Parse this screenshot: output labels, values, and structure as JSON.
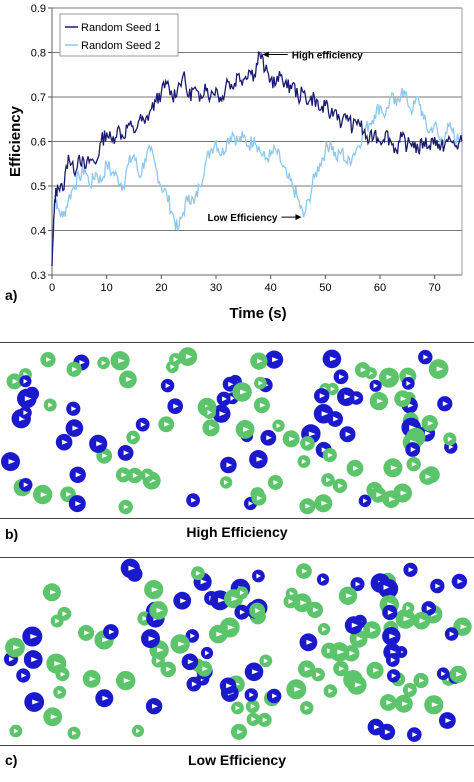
{
  "chart_data": {
    "type": "line",
    "xlabel": "Time (s)",
    "ylabel": "Efficiency",
    "xlim": [
      0,
      75
    ],
    "ylim": [
      0.3,
      0.9
    ],
    "x_ticks": [
      0,
      10,
      20,
      30,
      40,
      50,
      60,
      70
    ],
    "y_ticks": [
      0.3,
      0.4,
      0.5,
      0.6,
      0.7,
      0.8,
      0.9
    ],
    "grid": "horizontal",
    "legend": "top-left",
    "series": [
      {
        "name": "Random Seed 1",
        "color": "#1a1a6e",
        "points": [
          [
            0,
            0.32
          ],
          [
            0.5,
            0.47
          ],
          [
            1,
            0.5
          ],
          [
            2,
            0.49
          ],
          [
            3,
            0.57
          ],
          [
            4,
            0.53
          ],
          [
            5,
            0.57
          ],
          [
            6,
            0.54
          ],
          [
            7,
            0.56
          ],
          [
            8,
            0.55
          ],
          [
            9,
            0.6
          ],
          [
            10,
            0.62
          ],
          [
            11,
            0.6
          ],
          [
            12,
            0.63
          ],
          [
            13,
            0.61
          ],
          [
            14,
            0.64
          ],
          [
            15,
            0.62
          ],
          [
            16,
            0.65
          ],
          [
            17,
            0.64
          ],
          [
            18,
            0.67
          ],
          [
            19,
            0.69
          ],
          [
            20,
            0.71
          ],
          [
            21,
            0.73
          ],
          [
            22,
            0.7
          ],
          [
            23,
            0.72
          ],
          [
            24,
            0.75
          ],
          [
            25,
            0.7
          ],
          [
            26,
            0.72
          ],
          [
            27,
            0.69
          ],
          [
            28,
            0.73
          ],
          [
            29,
            0.7
          ],
          [
            30,
            0.72
          ],
          [
            31,
            0.69
          ],
          [
            32,
            0.74
          ],
          [
            33,
            0.72
          ],
          [
            34,
            0.75
          ],
          [
            35,
            0.74
          ],
          [
            36,
            0.76
          ],
          [
            37,
            0.75
          ],
          [
            38,
            0.8
          ],
          [
            39,
            0.76
          ],
          [
            40,
            0.74
          ],
          [
            41,
            0.73
          ],
          [
            42,
            0.75
          ],
          [
            43,
            0.72
          ],
          [
            44,
            0.73
          ],
          [
            45,
            0.7
          ],
          [
            46,
            0.71
          ],
          [
            47,
            0.69
          ],
          [
            48,
            0.7
          ],
          [
            49,
            0.67
          ],
          [
            50,
            0.68
          ],
          [
            51,
            0.66
          ],
          [
            52,
            0.67
          ],
          [
            53,
            0.64
          ],
          [
            54,
            0.66
          ],
          [
            55,
            0.63
          ],
          [
            56,
            0.65
          ],
          [
            57,
            0.62
          ],
          [
            58,
            0.6
          ],
          [
            59,
            0.62
          ],
          [
            60,
            0.6
          ],
          [
            61,
            0.62
          ],
          [
            62,
            0.6
          ],
          [
            63,
            0.58
          ],
          [
            64,
            0.61
          ],
          [
            65,
            0.59
          ],
          [
            66,
            0.6
          ],
          [
            67,
            0.58
          ],
          [
            68,
            0.6
          ],
          [
            69,
            0.59
          ],
          [
            70,
            0.61
          ],
          [
            71,
            0.58
          ],
          [
            72,
            0.6
          ],
          [
            73,
            0.6
          ],
          [
            74,
            0.59
          ],
          [
            75,
            0.6
          ]
        ]
      },
      {
        "name": "Random Seed 2",
        "color": "#8fc8ee",
        "points": [
          [
            0,
            0.32
          ],
          [
            0.5,
            0.48
          ],
          [
            1,
            0.45
          ],
          [
            2,
            0.43
          ],
          [
            3,
            0.47
          ],
          [
            4,
            0.5
          ],
          [
            5,
            0.52
          ],
          [
            6,
            0.54
          ],
          [
            7,
            0.5
          ],
          [
            8,
            0.53
          ],
          [
            9,
            0.51
          ],
          [
            10,
            0.55
          ],
          [
            11,
            0.53
          ],
          [
            12,
            0.52
          ],
          [
            13,
            0.5
          ],
          [
            14,
            0.55
          ],
          [
            15,
            0.57
          ],
          [
            16,
            0.52
          ],
          [
            17,
            0.56
          ],
          [
            18,
            0.58
          ],
          [
            19,
            0.54
          ],
          [
            20,
            0.5
          ],
          [
            21,
            0.48
          ],
          [
            22,
            0.44
          ],
          [
            23,
            0.4
          ],
          [
            24,
            0.44
          ],
          [
            25,
            0.48
          ],
          [
            26,
            0.46
          ],
          [
            27,
            0.5
          ],
          [
            28,
            0.55
          ],
          [
            29,
            0.58
          ],
          [
            30,
            0.6
          ],
          [
            31,
            0.57
          ],
          [
            32,
            0.6
          ],
          [
            33,
            0.62
          ],
          [
            34,
            0.6
          ],
          [
            35,
            0.61
          ],
          [
            36,
            0.59
          ],
          [
            37,
            0.61
          ],
          [
            38,
            0.58
          ],
          [
            39,
            0.56
          ],
          [
            40,
            0.57
          ],
          [
            41,
            0.58
          ],
          [
            42,
            0.55
          ],
          [
            43,
            0.52
          ],
          [
            44,
            0.5
          ],
          [
            45,
            0.47
          ],
          [
            46,
            0.43
          ],
          [
            47,
            0.47
          ],
          [
            48,
            0.52
          ],
          [
            49,
            0.55
          ],
          [
            50,
            0.58
          ],
          [
            51,
            0.6
          ],
          [
            52,
            0.56
          ],
          [
            53,
            0.58
          ],
          [
            54,
            0.55
          ],
          [
            55,
            0.57
          ],
          [
            56,
            0.59
          ],
          [
            57,
            0.62
          ],
          [
            58,
            0.64
          ],
          [
            59,
            0.66
          ],
          [
            60,
            0.68
          ],
          [
            61,
            0.66
          ],
          [
            62,
            0.7
          ],
          [
            63,
            0.68
          ],
          [
            64,
            0.72
          ],
          [
            65,
            0.69
          ],
          [
            66,
            0.67
          ],
          [
            67,
            0.7
          ],
          [
            68,
            0.65
          ],
          [
            69,
            0.62
          ],
          [
            70,
            0.64
          ],
          [
            71,
            0.6
          ],
          [
            72,
            0.62
          ],
          [
            73,
            0.63
          ],
          [
            74,
            0.6
          ],
          [
            75,
            0.62
          ]
        ]
      }
    ],
    "annotations": [
      {
        "text": "High efficiency",
        "x": 38,
        "y": 0.8
      },
      {
        "text": "Low Efficiency",
        "x": 46,
        "y": 0.43
      }
    ]
  },
  "panels": {
    "a_label": "a)",
    "b_label": "b)",
    "c_label": "c)",
    "b_caption": "High Efficiency",
    "c_caption": "Low Efficiency"
  },
  "particle_colors": {
    "green": "#5cc46a",
    "blue": "#1a1acc"
  },
  "tick_labels_x": [
    "0",
    "10",
    "20",
    "30",
    "40",
    "50",
    "60",
    "70"
  ],
  "tick_labels_y": [
    "0.3",
    "0.4",
    "0.5",
    "0.6",
    "0.7",
    "0.8",
    "0.9"
  ]
}
